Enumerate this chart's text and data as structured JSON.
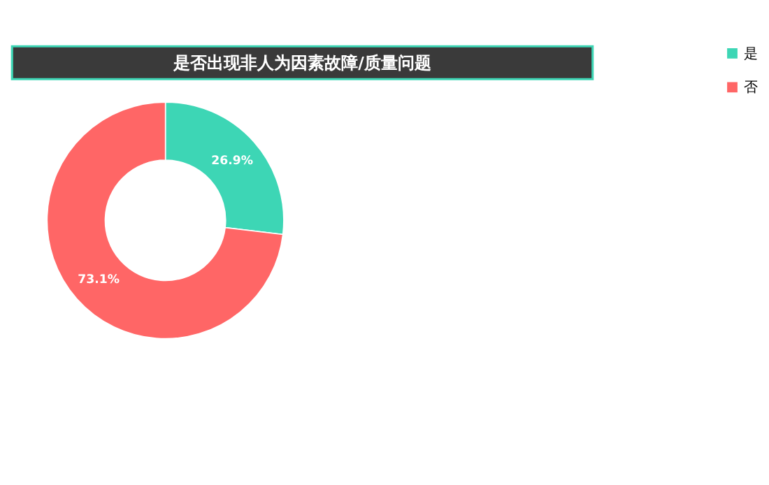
{
  "chart_data": {
    "type": "donut",
    "title": "是否出现非人为因素故障/质量问题",
    "categories": [
      "是",
      "否"
    ],
    "values": [
      26.9,
      73.1
    ],
    "colors": [
      "#3dd6b5",
      "#ff6666"
    ],
    "value_labels": [
      "26.9%",
      "73.1%"
    ],
    "legend": "right"
  }
}
